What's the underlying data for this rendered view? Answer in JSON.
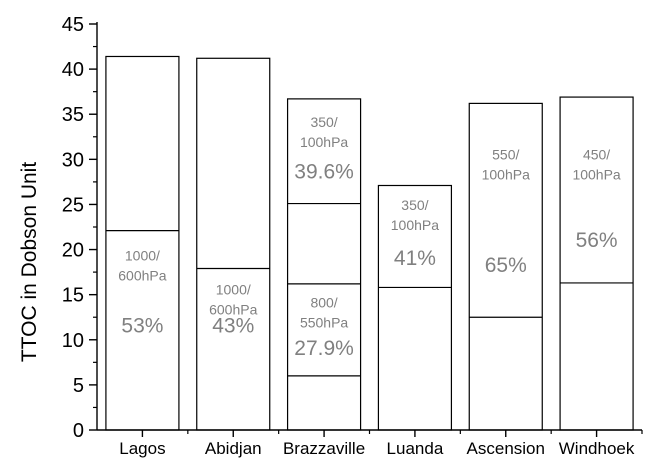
{
  "chart_data": {
    "type": "bar",
    "title": "",
    "xlabel": "",
    "ylabel": "TTOC in Dobson Unit",
    "ylim": [
      0,
      45
    ],
    "yticks": [
      0,
      5,
      10,
      15,
      20,
      25,
      30,
      35,
      40,
      45
    ],
    "grid": false,
    "categories": [
      "Lagos",
      "Abidjan",
      "Brazzaville",
      "Luanda",
      "Ascension",
      "Windhoek"
    ],
    "bars": [
      {
        "category": "Lagos",
        "total": 41.4,
        "dividers": [
          22.1
        ],
        "annotations": [
          {
            "pressure": "1000/\n600hPa",
            "percent": "53%",
            "pressure_y": 18.8,
            "percent_y": 10.8
          }
        ]
      },
      {
        "category": "Abidjan",
        "total": 41.2,
        "dividers": [
          17.9
        ],
        "annotations": [
          {
            "pressure": "1000/\n600hPa",
            "percent": "43%",
            "pressure_y": 15.0,
            "percent_y": 10.8
          }
        ]
      },
      {
        "category": "Brazzaville",
        "total": 36.7,
        "dividers": [
          25.1,
          16.2,
          6.0
        ],
        "annotations": [
          {
            "pressure": "350/\n100hPa",
            "percent": "39.6%",
            "pressure_y": 33.6,
            "percent_y": 27.9
          },
          {
            "pressure": "800/\n550hPa",
            "percent": "27.9%",
            "pressure_y": 13.6,
            "percent_y": 8.3
          }
        ]
      },
      {
        "category": "Luanda",
        "total": 27.1,
        "dividers": [
          15.8
        ],
        "annotations": [
          {
            "pressure": "350/\n100hPa",
            "percent": "41%",
            "pressure_y": 24.4,
            "percent_y": 18.3
          }
        ]
      },
      {
        "category": "Ascension",
        "total": 36.2,
        "dividers": [
          12.5
        ],
        "annotations": [
          {
            "pressure": "550/\n100hPa",
            "percent": "65%",
            "pressure_y": 30.0,
            "percent_y": 17.5
          }
        ]
      },
      {
        "category": "Windhoek",
        "total": 36.9,
        "dividers": [
          16.3
        ],
        "annotations": [
          {
            "pressure": "450/\n100hPa",
            "percent": "56%",
            "pressure_y": 30.0,
            "percent_y": 20.3
          }
        ]
      }
    ],
    "colors": {
      "bar_fill": "#ffffff",
      "bar_stroke": "#000000",
      "annotation": "#808080",
      "axis": "#000000"
    }
  }
}
